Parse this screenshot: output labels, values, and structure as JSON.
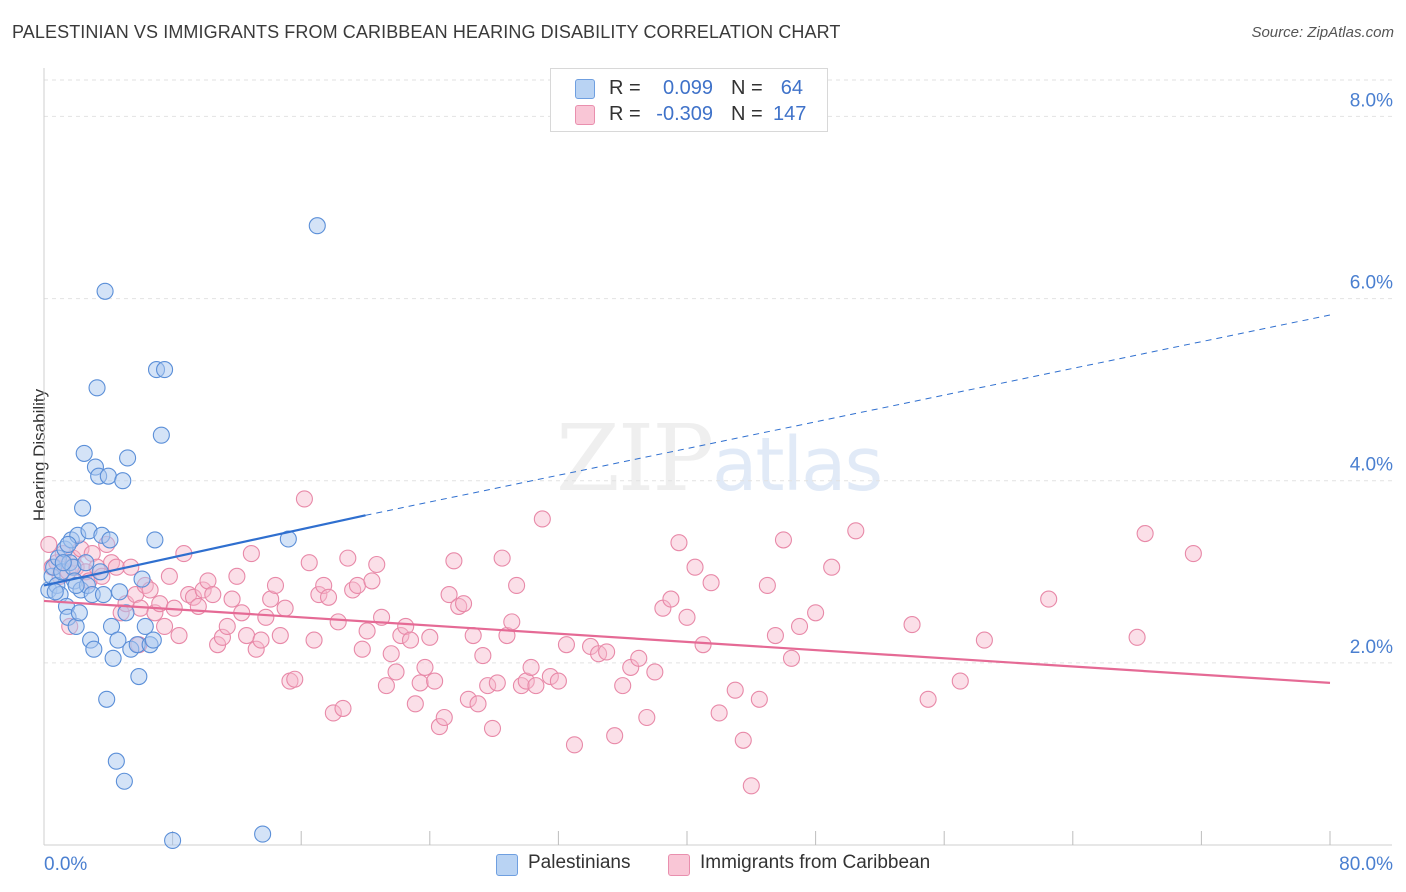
{
  "header": {
    "title": "PALESTINIAN VS IMMIGRANTS FROM CARIBBEAN HEARING DISABILITY CORRELATION CHART",
    "source": "Source: ZipAtlas.com"
  },
  "watermark": {
    "zip": "ZIP",
    "atlas": "atlas"
  },
  "legend": {
    "series1": {
      "r_label": "R =",
      "r_value": "0.099",
      "n_label": "N =",
      "n_value": "64"
    },
    "series2": {
      "r_label": "R =",
      "r_value": "-0.309",
      "n_label": "N =",
      "n_value": "147"
    }
  },
  "bottom_legend": {
    "series1": "Palestinians",
    "series2": "Immigrants from Caribbean"
  },
  "colors": {
    "blue_fill": "#a9c8ef",
    "blue_stroke": "#5b8fd8",
    "blue_line": "#2f6fcf",
    "pink_fill": "#f7b9cd",
    "pink_stroke": "#e889a8",
    "pink_line": "#e56a95",
    "tick_text": "#4a7fd0",
    "grid": "#e2e2e2"
  },
  "chart_data": {
    "type": "scatter",
    "title": "PALESTINIAN VS IMMIGRANTS FROM CARIBBEAN HEARING DISABILITY CORRELATION CHART",
    "xlabel": "",
    "ylabel": "Hearing Disability",
    "xlim": [
      0,
      80
    ],
    "ylim": [
      0,
      8.4
    ],
    "x_ticks": [
      "0.0%",
      "80.0%"
    ],
    "y_ticks": [
      {
        "value": 2.0,
        "label": "2.0%"
      },
      {
        "value": 4.0,
        "label": "4.0%"
      },
      {
        "value": 6.0,
        "label": "6.0%"
      },
      {
        "value": 8.0,
        "label": "8.0%"
      }
    ],
    "grid": true,
    "series": [
      {
        "name": "Palestinians",
        "r": 0.099,
        "n": 64,
        "trend": {
          "x0": 0,
          "y0": 2.85,
          "x_solid_end": 20.0,
          "y_solid_end": 3.62,
          "x_end": 80,
          "y_end": 5.82
        },
        "points": [
          [
            0.3,
            2.8
          ],
          [
            0.5,
            2.95
          ],
          [
            0.6,
            3.05
          ],
          [
            0.8,
            2.85
          ],
          [
            0.9,
            3.15
          ],
          [
            1.0,
            2.75
          ],
          [
            1.1,
            3.0
          ],
          [
            1.3,
            3.25
          ],
          [
            1.4,
            2.62
          ],
          [
            1.5,
            2.5
          ],
          [
            1.6,
            3.1
          ],
          [
            1.7,
            3.35
          ],
          [
            1.8,
            3.05
          ],
          [
            1.9,
            2.9
          ],
          [
            2.0,
            2.4
          ],
          [
            2.1,
            3.4
          ],
          [
            2.2,
            2.55
          ],
          [
            2.3,
            2.8
          ],
          [
            2.4,
            3.7
          ],
          [
            2.5,
            4.3
          ],
          [
            2.6,
            3.1
          ],
          [
            2.7,
            2.85
          ],
          [
            2.8,
            3.45
          ],
          [
            2.9,
            2.25
          ],
          [
            3.0,
            2.75
          ],
          [
            3.1,
            2.15
          ],
          [
            3.2,
            4.15
          ],
          [
            3.3,
            5.02
          ],
          [
            3.4,
            4.05
          ],
          [
            3.5,
            3.0
          ],
          [
            3.6,
            3.4
          ],
          [
            3.7,
            2.75
          ],
          [
            3.8,
            6.08
          ],
          [
            3.9,
            1.6
          ],
          [
            4.0,
            4.05
          ],
          [
            4.1,
            3.35
          ],
          [
            4.2,
            2.4
          ],
          [
            4.3,
            2.05
          ],
          [
            4.5,
            0.92
          ],
          [
            4.6,
            2.25
          ],
          [
            4.7,
            2.78
          ],
          [
            4.9,
            4.0
          ],
          [
            5.0,
            0.7
          ],
          [
            5.1,
            2.55
          ],
          [
            5.2,
            4.25
          ],
          [
            5.4,
            2.15
          ],
          [
            5.8,
            2.2
          ],
          [
            5.9,
            1.85
          ],
          [
            6.1,
            2.92
          ],
          [
            6.3,
            2.4
          ],
          [
            6.6,
            2.2
          ],
          [
            6.8,
            2.25
          ],
          [
            6.9,
            3.35
          ],
          [
            7.0,
            5.22
          ],
          [
            7.3,
            4.5
          ],
          [
            7.5,
            5.22
          ],
          [
            8.0,
            0.05
          ],
          [
            13.6,
            0.12
          ],
          [
            15.2,
            3.36
          ],
          [
            17.0,
            6.8
          ],
          [
            1.2,
            3.1
          ],
          [
            2.0,
            2.85
          ],
          [
            0.7,
            2.78
          ],
          [
            1.5,
            3.3
          ]
        ]
      },
      {
        "name": "Immigrants from Caribbean",
        "r": -0.309,
        "n": 147,
        "trend": {
          "x0": 0,
          "y0": 2.68,
          "x_end": 80,
          "y_end": 1.78
        },
        "points": [
          [
            0.5,
            3.05
          ],
          [
            0.8,
            3.1
          ],
          [
            1.0,
            2.95
          ],
          [
            1.2,
            3.2
          ],
          [
            1.5,
            3.0
          ],
          [
            1.8,
            3.15
          ],
          [
            2.0,
            3.05
          ],
          [
            2.3,
            3.25
          ],
          [
            2.6,
            3.0
          ],
          [
            2.8,
            2.9
          ],
          [
            3.0,
            3.2
          ],
          [
            3.3,
            3.05
          ],
          [
            3.6,
            2.95
          ],
          [
            3.9,
            3.3
          ],
          [
            4.2,
            3.1
          ],
          [
            4.5,
            3.05
          ],
          [
            4.8,
            2.55
          ],
          [
            5.1,
            2.65
          ],
          [
            5.4,
            3.05
          ],
          [
            5.7,
            2.75
          ],
          [
            6.0,
            2.6
          ],
          [
            6.3,
            2.85
          ],
          [
            6.6,
            2.8
          ],
          [
            6.9,
            2.55
          ],
          [
            7.2,
            2.65
          ],
          [
            7.5,
            2.4
          ],
          [
            7.8,
            2.95
          ],
          [
            8.1,
            2.6
          ],
          [
            8.4,
            2.3
          ],
          [
            8.7,
            3.2
          ],
          [
            9.0,
            2.75
          ],
          [
            9.3,
            2.72
          ],
          [
            9.6,
            2.62
          ],
          [
            9.9,
            2.8
          ],
          [
            10.2,
            2.9
          ],
          [
            10.5,
            2.75
          ],
          [
            10.8,
            2.2
          ],
          [
            11.1,
            2.28
          ],
          [
            11.4,
            2.4
          ],
          [
            11.7,
            2.7
          ],
          [
            12.0,
            2.95
          ],
          [
            12.3,
            2.55
          ],
          [
            12.6,
            2.3
          ],
          [
            12.9,
            3.2
          ],
          [
            13.2,
            2.15
          ],
          [
            13.5,
            2.25
          ],
          [
            13.8,
            2.5
          ],
          [
            14.1,
            2.7
          ],
          [
            14.4,
            2.85
          ],
          [
            14.7,
            2.3
          ],
          [
            15.0,
            2.6
          ],
          [
            15.3,
            1.8
          ],
          [
            15.6,
            1.82
          ],
          [
            16.2,
            3.8
          ],
          [
            16.5,
            3.1
          ],
          [
            16.8,
            2.25
          ],
          [
            17.1,
            2.75
          ],
          [
            17.4,
            2.85
          ],
          [
            17.7,
            2.72
          ],
          [
            18.0,
            1.45
          ],
          [
            18.3,
            2.45
          ],
          [
            18.6,
            1.5
          ],
          [
            18.9,
            3.15
          ],
          [
            19.2,
            2.8
          ],
          [
            19.5,
            2.85
          ],
          [
            19.8,
            2.15
          ],
          [
            20.1,
            2.35
          ],
          [
            20.4,
            2.9
          ],
          [
            20.7,
            3.08
          ],
          [
            21.0,
            2.5
          ],
          [
            21.3,
            1.75
          ],
          [
            21.6,
            2.1
          ],
          [
            21.9,
            1.9
          ],
          [
            22.2,
            2.3
          ],
          [
            22.5,
            2.4
          ],
          [
            22.8,
            2.25
          ],
          [
            23.1,
            1.55
          ],
          [
            23.4,
            1.78
          ],
          [
            23.7,
            1.95
          ],
          [
            24.0,
            2.28
          ],
          [
            24.3,
            1.8
          ],
          [
            24.6,
            1.3
          ],
          [
            24.9,
            1.4
          ],
          [
            25.2,
            2.75
          ],
          [
            25.5,
            3.12
          ],
          [
            25.8,
            2.62
          ],
          [
            26.1,
            2.65
          ],
          [
            26.4,
            1.6
          ],
          [
            26.7,
            2.3
          ],
          [
            27.0,
            1.55
          ],
          [
            27.3,
            2.08
          ],
          [
            27.6,
            1.75
          ],
          [
            27.9,
            1.28
          ],
          [
            28.2,
            1.78
          ],
          [
            28.5,
            3.15
          ],
          [
            28.8,
            2.3
          ],
          [
            29.1,
            2.45
          ],
          [
            29.4,
            2.85
          ],
          [
            29.7,
            1.75
          ],
          [
            30.0,
            1.8
          ],
          [
            30.3,
            1.95
          ],
          [
            30.6,
            1.75
          ],
          [
            31.0,
            3.58
          ],
          [
            31.5,
            1.85
          ],
          [
            32.0,
            1.8
          ],
          [
            32.5,
            2.2
          ],
          [
            33.0,
            1.1
          ],
          [
            34.0,
            2.18
          ],
          [
            34.5,
            2.1
          ],
          [
            35.0,
            2.12
          ],
          [
            35.5,
            1.2
          ],
          [
            36.0,
            1.75
          ],
          [
            36.5,
            1.95
          ],
          [
            37.0,
            2.05
          ],
          [
            37.5,
            1.4
          ],
          [
            38.0,
            1.9
          ],
          [
            38.5,
            2.6
          ],
          [
            39.0,
            2.7
          ],
          [
            39.5,
            3.32
          ],
          [
            40.0,
            2.5
          ],
          [
            40.5,
            3.05
          ],
          [
            41.0,
            2.2
          ],
          [
            41.5,
            2.88
          ],
          [
            42.0,
            1.45
          ],
          [
            43.0,
            1.7
          ],
          [
            43.5,
            1.15
          ],
          [
            44.0,
            0.65
          ],
          [
            44.5,
            1.6
          ],
          [
            45.0,
            2.85
          ],
          [
            45.5,
            2.3
          ],
          [
            46.0,
            3.35
          ],
          [
            46.5,
            2.05
          ],
          [
            47.0,
            2.4
          ],
          [
            48.0,
            2.55
          ],
          [
            49.0,
            3.05
          ],
          [
            50.5,
            3.45
          ],
          [
            54.0,
            2.42
          ],
          [
            55.0,
            1.6
          ],
          [
            57.0,
            1.8
          ],
          [
            58.5,
            2.25
          ],
          [
            62.5,
            2.7
          ],
          [
            68.0,
            2.28
          ],
          [
            68.5,
            3.42
          ],
          [
            71.5,
            3.2
          ],
          [
            0.3,
            3.3
          ],
          [
            1.6,
            2.4
          ],
          [
            5.9,
            2.2
          ]
        ]
      }
    ]
  }
}
